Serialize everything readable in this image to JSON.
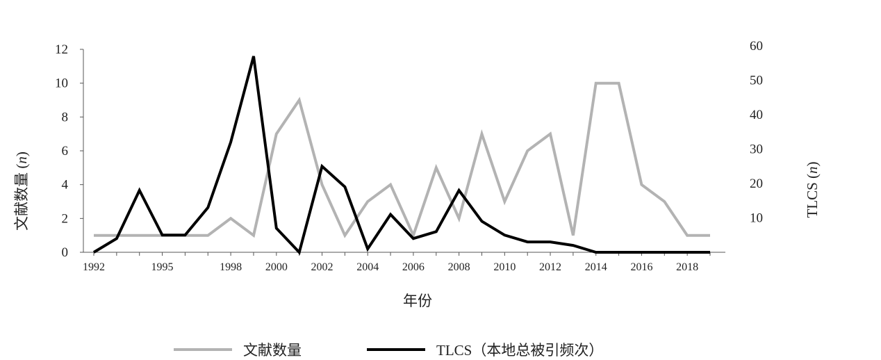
{
  "chart_data": {
    "type": "line",
    "xlabel": "年份",
    "ylabel_left": "文献数量 (n)",
    "ylabel_left_text": "文献数量 (",
    "ylabel_left_var": "n",
    "ylabel_left_close": ")",
    "ylabel_right": "TLCS (n)",
    "ylabel_right_text": "TLCS (",
    "ylabel_right_var": "n",
    "ylabel_right_close": ")",
    "x": [
      1992,
      1993,
      1994,
      1995,
      1996,
      1997,
      1998,
      1999,
      2000,
      2001,
      2002,
      2003,
      2004,
      2005,
      2006,
      2007,
      2008,
      2009,
      2010,
      2011,
      2012,
      2013,
      2014,
      2015,
      2016,
      2017,
      2018,
      2019
    ],
    "x_ticks": [
      1992,
      1995,
      1998,
      2000,
      2002,
      2004,
      2006,
      2008,
      2010,
      2012,
      2014,
      2016,
      2018
    ],
    "y_left_ticks": [
      0,
      2,
      4,
      6,
      8,
      10,
      12
    ],
    "y_right_ticks": [
      10,
      20,
      30,
      40,
      50,
      60
    ],
    "ylim_left": [
      0,
      12
    ],
    "ylim_right": [
      0,
      60
    ],
    "series": [
      {
        "name": "文献数量",
        "axis": "left",
        "color": "#b3b3b3",
        "values": [
          1,
          1,
          1,
          1,
          1,
          1,
          2,
          1,
          7,
          9,
          4,
          1,
          3,
          4,
          1,
          5,
          2,
          7,
          3,
          6,
          7,
          1,
          10,
          10,
          4,
          3,
          1,
          1
        ]
      },
      {
        "name": "TLCS（本地总被引频次）",
        "axis": "right",
        "color": "#000000",
        "values": [
          0,
          4,
          18,
          5,
          5,
          13,
          32,
          57,
          7,
          0,
          25,
          19,
          1,
          11,
          4,
          6,
          18,
          9,
          5,
          3,
          3,
          2,
          0,
          0,
          0,
          0,
          0,
          0
        ]
      }
    ]
  }
}
